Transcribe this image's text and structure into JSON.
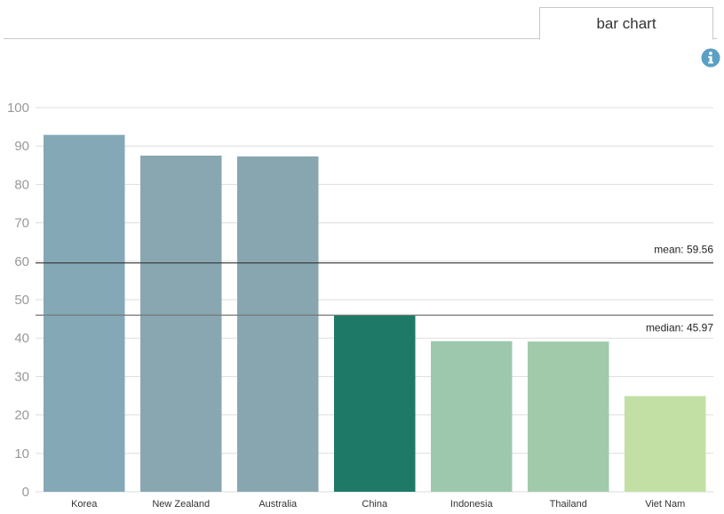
{
  "tabs": [
    {
      "label": "bar chart",
      "active": true
    }
  ],
  "info_icon": "info-icon",
  "chart_data": {
    "type": "bar",
    "categories": [
      "Korea",
      "New Zealand",
      "Australia",
      "China",
      "Indonesia",
      "Thailand",
      "Viet Nam"
    ],
    "values": [
      92.9,
      87.5,
      87.3,
      45.97,
      39.2,
      39.1,
      24.9
    ],
    "colors": [
      "#84a8b6",
      "#88a7b1",
      "#88a6b0",
      "#1e7a66",
      "#9dc8ad",
      "#a1caab",
      "#c2e0a3"
    ],
    "title": "",
    "xlabel": "",
    "ylabel": "",
    "ylim": [
      0,
      100
    ],
    "yticks": [
      0,
      10,
      20,
      30,
      40,
      50,
      60,
      70,
      80,
      90,
      100
    ],
    "grid": true,
    "reference_lines": [
      {
        "label": "mean: 59.56",
        "value": 59.56
      },
      {
        "label": "median: 45.97",
        "value": 45.97
      }
    ]
  }
}
